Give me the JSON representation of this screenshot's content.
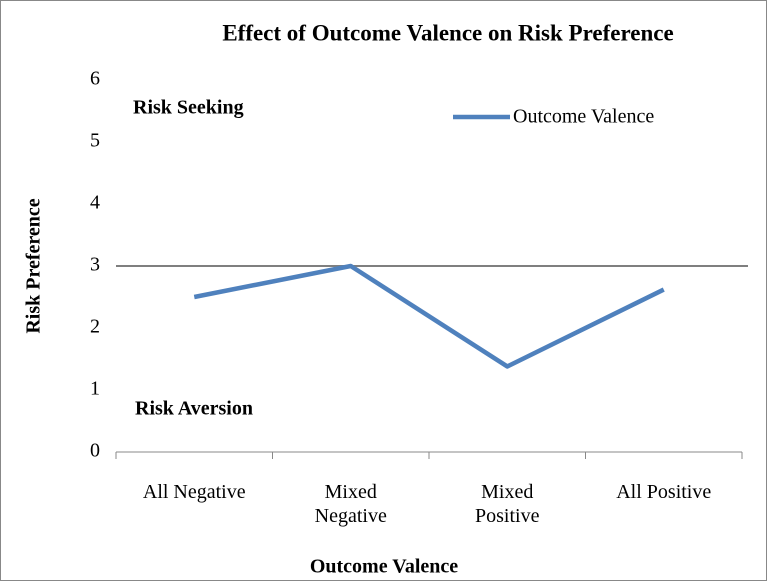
{
  "chart_data": {
    "type": "line",
    "title": "Effect of Outcome Valence on Risk Preference",
    "x_label": "Outcome Valence",
    "y_label": "Risk Preference",
    "categories": [
      "All Negative",
      "Mixed Negative",
      "Mixed Positive",
      "All Positive"
    ],
    "series": [
      {
        "name": "Outcome Valence",
        "color": "#4f81bd",
        "values": [
          2.5,
          3.0,
          1.38,
          2.62
        ]
      }
    ],
    "ylim": [
      0,
      6
    ],
    "yticks": [
      0,
      1,
      2,
      3,
      4,
      5,
      6
    ],
    "reference_line": 3,
    "annotations": [
      "Risk Seeking",
      "Risk Aversion"
    ],
    "legend": "upper right",
    "grid": false
  }
}
